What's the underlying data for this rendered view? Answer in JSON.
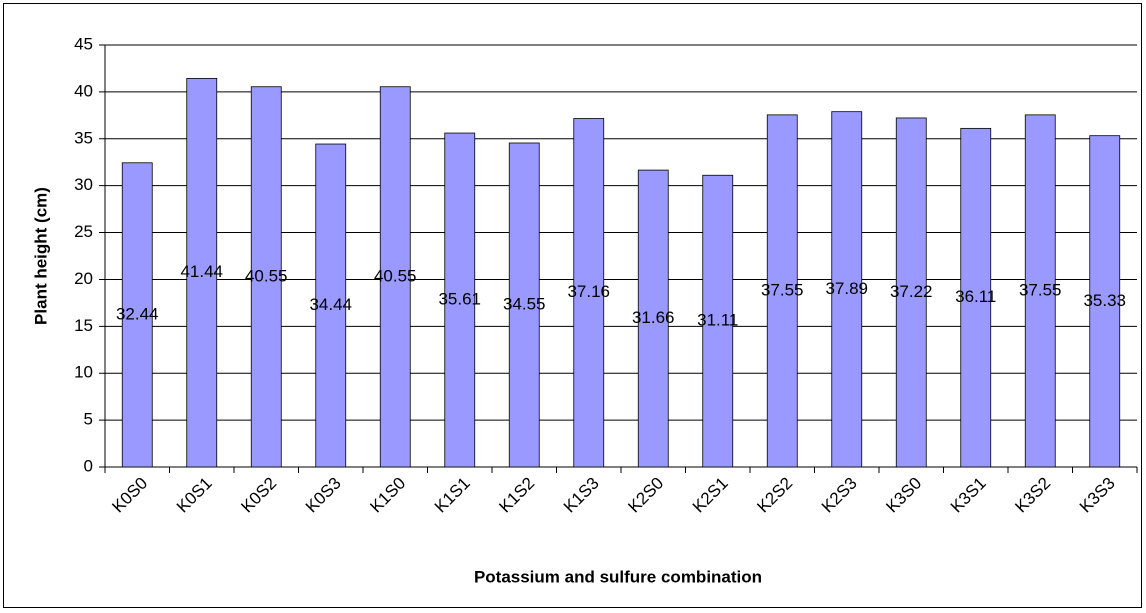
{
  "chart_data": {
    "type": "bar",
    "x_label": "Potassium and sulfure combination",
    "y_label": "Plant height (cm)",
    "categories": [
      "K0S0",
      "K0S1",
      "K0S2",
      "K0S3",
      "K1S0",
      "K1S1",
      "K1S2",
      "K1S3",
      "K2S0",
      "K2S1",
      "K2S2",
      "K2S3",
      "K3S0",
      "K3S1",
      "K3S2",
      "K3S3"
    ],
    "values": [
      32.44,
      41.44,
      40.55,
      34.44,
      40.55,
      35.61,
      34.55,
      37.16,
      31.66,
      31.11,
      37.55,
      37.89,
      37.22,
      36.11,
      37.55,
      35.33
    ],
    "color": "#9999ff",
    "ylim": [
      0,
      45
    ],
    "yticks": [
      0,
      5,
      10,
      15,
      20,
      25,
      30,
      35,
      40,
      45
    ],
    "grid": true
  }
}
